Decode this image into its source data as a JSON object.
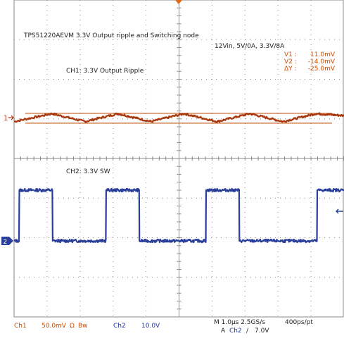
{
  "annotations": {
    "title": "TPS51220AEVM 3.3V Output ripple and Switching node",
    "conditions": "12Vin, 5V/0A, 3.3V/8A",
    "ch1_label": "CH1: 3.3V Output Ripple",
    "ch2_label": "CH2: 3.3V SW"
  },
  "cursors": [
    {
      "label": "V1 :",
      "value": "11.0mV"
    },
    {
      "label": "V2 :",
      "value": "-14.0mV"
    },
    {
      "label": "ΔY :",
      "value": "-25.0mV"
    }
  ],
  "markers": {
    "ch1": "1",
    "ch2": "2"
  },
  "status": {
    "ch1_name": "Ch1",
    "ch1_scale": "50.0mV",
    "ch1_coupling": "Ω",
    "ch1_bw": "Bw",
    "ch2_name": "Ch2",
    "ch2_scale": "10.0V",
    "timebase": "M 1.0µs 2.5GS/s",
    "record": "400ps/pt",
    "trigger_prefix": "A",
    "trigger_source": "Ch2",
    "trigger_slope": "/",
    "trigger_level": "7.0V"
  },
  "colors": {
    "ch1": "#a83a12",
    "ch2": "#2a3f9a",
    "cursor": "#c86428",
    "grid": "#8a8a8a"
  },
  "chart_data": {
    "type": "line",
    "x_unit": "µs",
    "xlim": [
      -5.0,
      5.0
    ],
    "grid": "10x8 dotted",
    "cursor_levels_mV": [
      11.0,
      -14.0
    ],
    "series": [
      {
        "name": "CH1: 3.3V Output Ripple",
        "unit": "mV",
        "scale_per_div": "50.0mV",
        "x": [
          -5.0,
          -3.85,
          -2.85,
          -1.85,
          -0.85,
          0.15,
          1.15,
          2.15,
          3.15,
          4.15,
          5.0
        ],
        "y": [
          -10,
          10,
          -10,
          10,
          -10,
          10,
          -10,
          10,
          -10,
          10,
          5
        ]
      },
      {
        "name": "CH2: 3.3V SW",
        "unit": "V",
        "scale_per_div": "10.0V",
        "x": [
          -5.0,
          -4.85,
          -4.84,
          -3.84,
          -3.83,
          -2.22,
          -2.21,
          -1.21,
          -1.2,
          0.81,
          0.82,
          1.82,
          1.83,
          4.18,
          4.19,
          5.0
        ],
        "y": [
          0,
          0,
          12,
          12,
          0,
          0,
          12,
          12,
          0,
          0,
          12,
          12,
          0,
          0,
          12,
          12
        ]
      }
    ]
  }
}
